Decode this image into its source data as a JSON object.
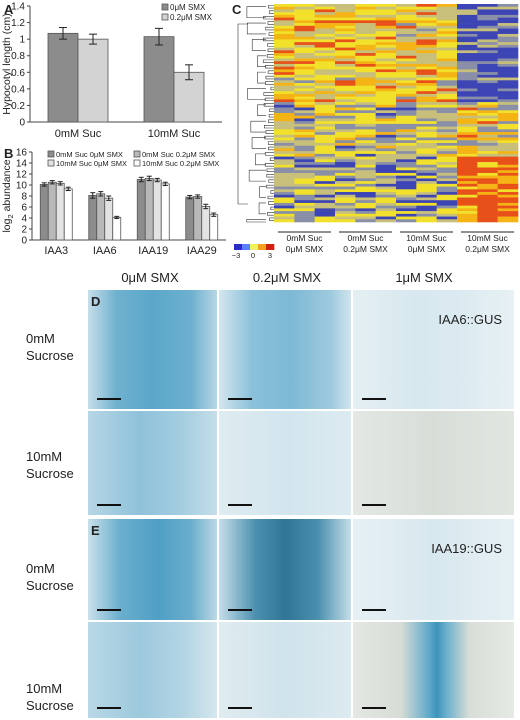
{
  "panels": {
    "a": "A",
    "b": "B",
    "c": "C",
    "d": "D",
    "e": "E"
  },
  "chart_data": [
    {
      "type": "bar",
      "panel": "A",
      "categories": [
        "0mM Suc",
        "10mM Suc"
      ],
      "series": [
        {
          "name": "0μM SMX",
          "values": [
            1.07,
            1.03
          ],
          "errors": [
            0.07,
            0.1
          ],
          "color": "#8c8c8c"
        },
        {
          "name": "0.2μM SMX",
          "values": [
            1.0,
            0.6
          ],
          "errors": [
            0.06,
            0.09
          ],
          "color": "#d3d3d3"
        }
      ],
      "ylabel": "Hypocotyl length (cm)",
      "ylim": [
        0,
        1.4
      ],
      "yticks": [
        "0",
        "0.2",
        "0.4",
        "0.6",
        "0.8",
        "1",
        "1.2",
        "1.4"
      ],
      "legend_position": "top-right"
    },
    {
      "type": "bar",
      "panel": "B",
      "categories": [
        "IAA3",
        "IAA6",
        "IAA19",
        "IAA29"
      ],
      "series": [
        {
          "name": "0mM Suc 0μM SMX",
          "values": [
            10.1,
            8.1,
            11.0,
            7.8
          ],
          "errors": [
            0.3,
            0.5,
            0.4,
            0.3
          ],
          "color": "#8c8c8c"
        },
        {
          "name": "0mM Suc 0.2μM SMX",
          "values": [
            10.5,
            8.4,
            11.2,
            7.9
          ],
          "errors": [
            0.3,
            0.4,
            0.4,
            0.3
          ],
          "color": "#b8b8b8"
        },
        {
          "name": "10mM Suc 0μM SMX",
          "values": [
            10.3,
            7.6,
            10.9,
            6.1
          ],
          "errors": [
            0.3,
            0.4,
            0.3,
            0.4
          ],
          "color": "#e3e3e3"
        },
        {
          "name": "10mM Suc 0.2μM SMX",
          "values": [
            9.3,
            4.1,
            10.2,
            4.6
          ],
          "errors": [
            0.3,
            0.2,
            0.3,
            0.3
          ],
          "color": "#ffffff"
        }
      ],
      "ylabel_main": "log",
      "ylabel_sub": "2",
      "ylabel_rest": " abundance",
      "ylim": [
        0,
        16
      ],
      "yticks": [
        "0",
        "2",
        "4",
        "6",
        "8",
        "10",
        "12",
        "14",
        "16"
      ],
      "legend_position": "top"
    },
    {
      "type": "heatmap",
      "panel": "C",
      "colorbar_ticks": [
        "−3",
        "0",
        "3"
      ],
      "groups": [
        {
          "line1": "0mM Suc",
          "line2": "0μM SMX"
        },
        {
          "line1": "0mM Suc",
          "line2": "0.2μM SMX"
        },
        {
          "line1": "10mM Suc",
          "line2": "0μM SMX"
        },
        {
          "line1": "10mM Suc",
          "line2": "0.2μM SMX"
        }
      ]
    }
  ],
  "gus": {
    "columns": [
      "0μM SMX",
      "0.2μM SMX",
      "1μM SMX"
    ],
    "rows": [
      {
        "line1": "0mM",
        "line2": "Sucrose"
      },
      {
        "line1": "10mM",
        "line2": "Sucrose"
      },
      {
        "line1": "0mM",
        "line2": "Sucrose"
      },
      {
        "line1": "10mM",
        "line2": "Sucrose"
      }
    ],
    "tags": {
      "d": "IAA6::GUS",
      "e": "IAA19::GUS"
    }
  }
}
